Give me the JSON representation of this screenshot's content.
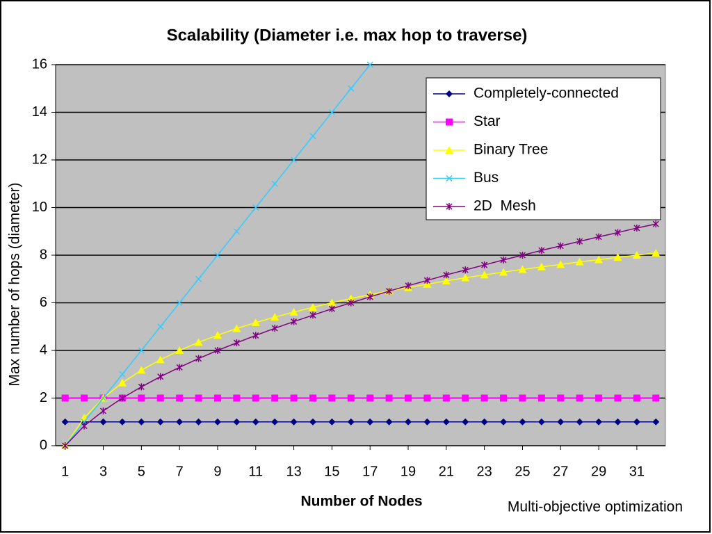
{
  "chart_data": {
    "type": "line",
    "title": "Scalability (Diameter i.e. max hop to traverse)",
    "x_label": "Number of Nodes",
    "y_label": "Max number of hops (diameter)",
    "footer": "Multi-objective optimization",
    "x": [
      1,
      2,
      3,
      4,
      5,
      6,
      7,
      8,
      9,
      10,
      11,
      12,
      13,
      14,
      15,
      16,
      17,
      18,
      19,
      20,
      21,
      22,
      23,
      24,
      25,
      26,
      27,
      28,
      29,
      30,
      31,
      32
    ],
    "xlim": [
      0.5,
      32.5
    ],
    "xticks": [
      1,
      3,
      5,
      7,
      9,
      11,
      13,
      15,
      17,
      19,
      21,
      23,
      25,
      27,
      29,
      31
    ],
    "ylim": [
      0,
      16
    ],
    "yticks": [
      0,
      2,
      4,
      6,
      8,
      10,
      12,
      14,
      16
    ],
    "grid": true,
    "legend": "upper right",
    "series": [
      {
        "name": "Completely-connected",
        "color": "#000080",
        "marker": "diamond",
        "values": [
          1,
          1,
          1,
          1,
          1,
          1,
          1,
          1,
          1,
          1,
          1,
          1,
          1,
          1,
          1,
          1,
          1,
          1,
          1,
          1,
          1,
          1,
          1,
          1,
          1,
          1,
          1,
          1,
          1,
          1,
          1,
          1
        ]
      },
      {
        "name": "Star",
        "color": "#ff00ff",
        "marker": "square",
        "values": [
          2,
          2,
          2,
          2,
          2,
          2,
          2,
          2,
          2,
          2,
          2,
          2,
          2,
          2,
          2,
          2,
          2,
          2,
          2,
          2,
          2,
          2,
          2,
          2,
          2,
          2,
          2,
          2,
          2,
          2,
          2,
          2
        ]
      },
      {
        "name": "Binary Tree",
        "color": "#ffff00",
        "marker": "triangle",
        "values": [
          0,
          1.17,
          2,
          2.64,
          3.17,
          3.61,
          4,
          4.34,
          4.64,
          4.92,
          5.17,
          5.4,
          5.61,
          5.81,
          6,
          6.18,
          6.34,
          6.5,
          6.64,
          6.78,
          6.92,
          7.05,
          7.17,
          7.29,
          7.4,
          7.51,
          7.61,
          7.72,
          7.81,
          7.91,
          8,
          8.09
        ]
      },
      {
        "name": "Bus",
        "color": "#33ccff",
        "marker": "x",
        "values": [
          0,
          1,
          2,
          3,
          4,
          5,
          6,
          7,
          8,
          9,
          10,
          11,
          12,
          13,
          14,
          15,
          16,
          null,
          null,
          null,
          null,
          null,
          null,
          null,
          null,
          null,
          null,
          null,
          null,
          null,
          null,
          null
        ]
      },
      {
        "name": "2D  Mesh",
        "color": "#800080",
        "marker": "star",
        "values": [
          0,
          0.83,
          1.46,
          2,
          2.47,
          2.9,
          3.29,
          3.66,
          4,
          4.32,
          4.63,
          4.93,
          5.21,
          5.48,
          5.75,
          6,
          6.25,
          6.49,
          6.72,
          6.94,
          7.17,
          7.38,
          7.59,
          7.8,
          8,
          8.2,
          8.39,
          8.58,
          8.77,
          8.95,
          9.14,
          9.31
        ]
      }
    ]
  }
}
